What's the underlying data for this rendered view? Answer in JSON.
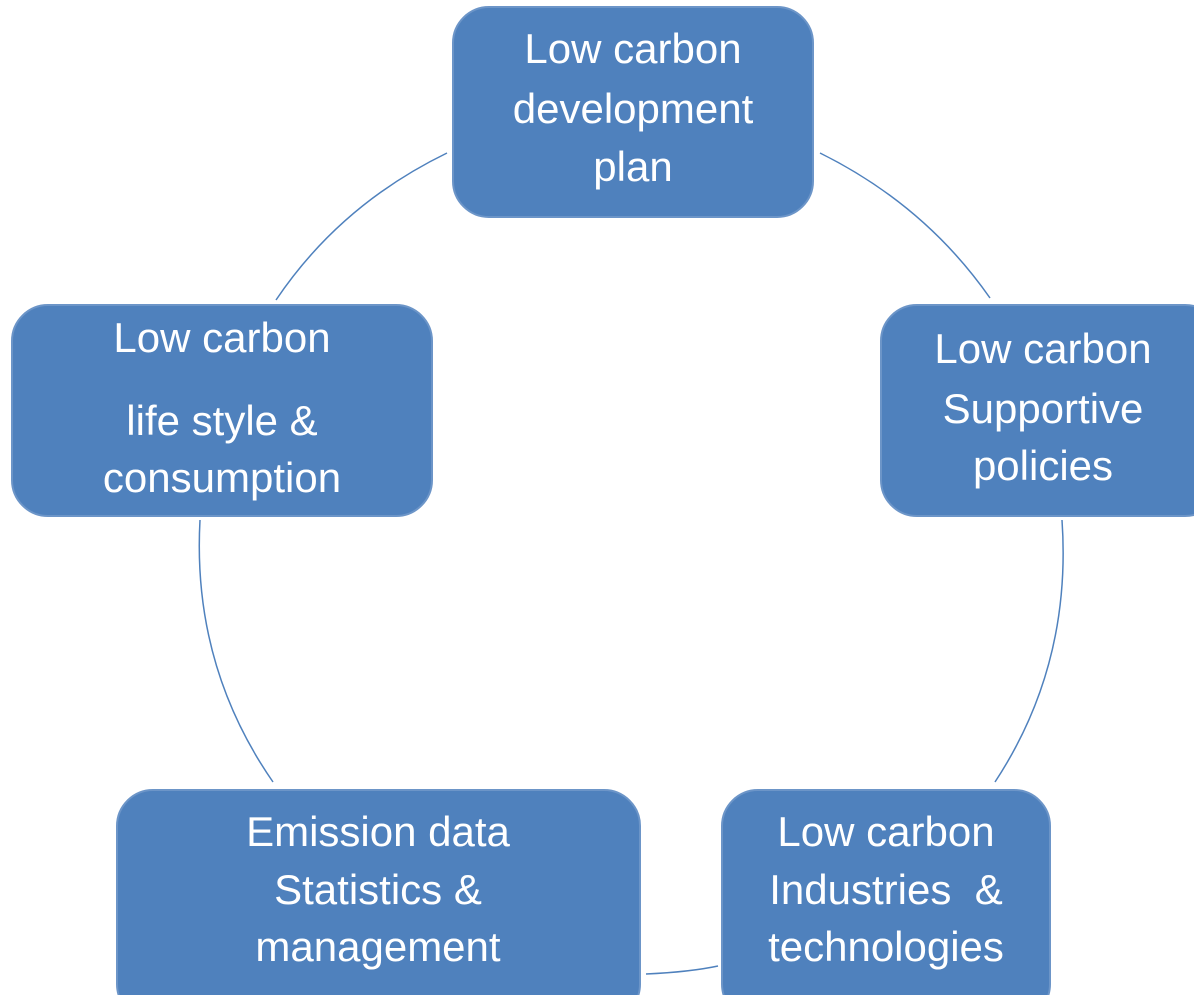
{
  "nodes": [
    {
      "lines": [
        "Low carbon",
        "development",
        "plan"
      ]
    },
    {
      "lines": [
        "Low carbon",
        "Supportive",
        "policies"
      ]
    },
    {
      "lines": [
        "Low carbon",
        "Industries  &",
        "technologies"
      ]
    },
    {
      "lines": [
        "Emission data",
        "Statistics &",
        "management"
      ]
    },
    {
      "lines": [
        "Low carbon",
        "life style &",
        "consumption"
      ]
    }
  ]
}
